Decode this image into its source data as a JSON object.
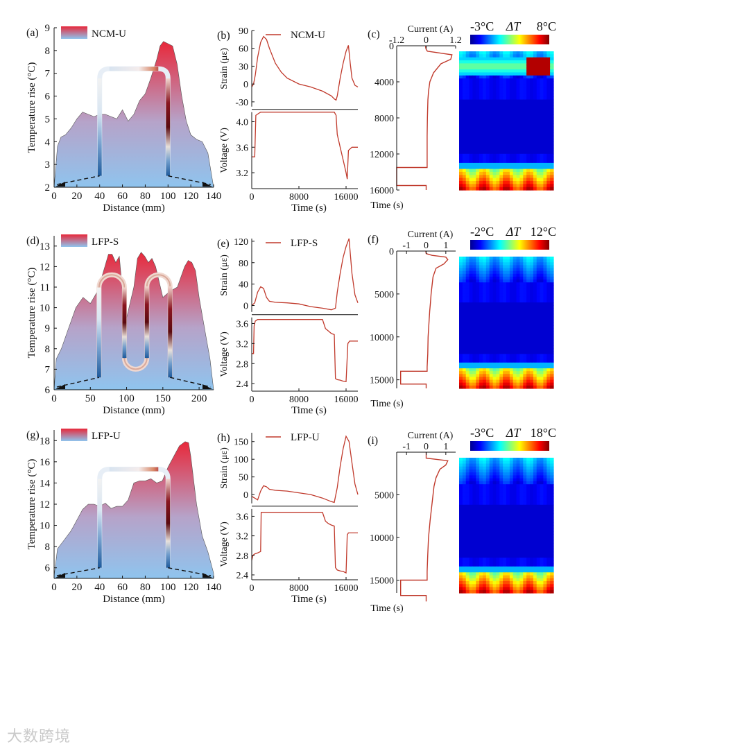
{
  "watermark": "大数跨境",
  "colors": {
    "curve": "#c0392b",
    "profile_top": "#e8283a",
    "profile_bottom": "#8fc4ee",
    "fiber_hot": "#6e0a14",
    "fiber_cold": "#1e5a9c"
  },
  "legend_swatch_name": "temperature-gradient-swatch",
  "chart_data": [
    {
      "id": "a",
      "type": "area",
      "panel_label": "(a)",
      "legend": "NCM-U",
      "xlabel": "Distance (mm)",
      "ylabel": "Temperature rise (°C)",
      "xlim": [
        0,
        140
      ],
      "ylim": [
        2,
        9
      ],
      "xticks": [
        "0",
        "20",
        "40",
        "60",
        "80",
        "100",
        "120",
        "140"
      ],
      "yticks": [
        "2",
        "3",
        "4",
        "5",
        "6",
        "7",
        "8",
        "9"
      ],
      "x": [
        0,
        3,
        6,
        10,
        15,
        20,
        25,
        30,
        35,
        40,
        45,
        50,
        55,
        60,
        65,
        70,
        75,
        80,
        85,
        90,
        93,
        96,
        100,
        104,
        108,
        112,
        116,
        120,
        125,
        130,
        135,
        140
      ],
      "y": [
        2.0,
        3.8,
        4.2,
        4.3,
        4.6,
        5.0,
        5.3,
        5.2,
        5.1,
        5.2,
        5.2,
        5.1,
        5.0,
        5.4,
        4.9,
        5.2,
        5.8,
        6.1,
        6.8,
        7.6,
        8.2,
        8.4,
        8.3,
        8.2,
        7.4,
        6.0,
        4.9,
        4.3,
        4.1,
        4.0,
        3.5,
        2.0
      ],
      "fiber": {
        "shape": "U",
        "x": [
          40,
          100
        ],
        "top": 7.2,
        "bottom": 2.5
      }
    },
    {
      "id": "b",
      "type": "line",
      "panel_label": "(b)",
      "legend": "NCM-U",
      "xlabel": "Time (s)",
      "xlim": [
        0,
        18000
      ],
      "xticks": [
        "0",
        "8000",
        "16000"
      ],
      "top": {
        "ylabel": "Strain (με)",
        "ylim": [
          -38,
          90
        ],
        "yticks": [
          "-30",
          "0",
          "30",
          "60",
          "90"
        ],
        "x": [
          0,
          300,
          600,
          1000,
          1500,
          2000,
          2500,
          3000,
          4000,
          5000,
          6000,
          8000,
          10000,
          12000,
          13500,
          14000,
          14300,
          14500,
          15000,
          15500,
          16000,
          16400,
          16700,
          17000,
          17500,
          18000
        ],
        "y": [
          -5,
          0,
          15,
          45,
          70,
          80,
          75,
          60,
          35,
          20,
          10,
          0,
          -5,
          -12,
          -20,
          -25,
          -27,
          -20,
          10,
          35,
          55,
          65,
          35,
          10,
          -2,
          -5
        ]
      },
      "bottom": {
        "ylabel": "Voltage (V)",
        "ylim": [
          2.95,
          4.15
        ],
        "yticks": [
          "3.2",
          "3.6",
          "4.0"
        ],
        "x": [
          0,
          500,
          700,
          1000,
          1500,
          14000,
          14300,
          14500,
          15000,
          15500,
          16000,
          16200,
          16400,
          17000,
          18000
        ],
        "y": [
          3.45,
          3.45,
          4.1,
          4.12,
          4.15,
          4.15,
          4.1,
          3.8,
          3.6,
          3.4,
          3.2,
          3.1,
          3.55,
          3.6,
          3.6
        ]
      }
    },
    {
      "id": "c",
      "type": "heatmap",
      "panel_label": "(c)",
      "current_label": "Current (A)",
      "current_ticks": [
        "-1.2",
        "0",
        "1.2"
      ],
      "current_lim": [
        -1.2,
        1.2
      ],
      "time_label": "Time (s)",
      "time_lim": [
        0,
        16000
      ],
      "time_ticks": [
        "0",
        "4000",
        "8000",
        "12000",
        "16000"
      ],
      "colorbar": {
        "min_label": "-3°C",
        "delta_label": "ΔT",
        "max_label": "8°C"
      },
      "current_t": [
        0,
        200,
        400,
        600,
        1000,
        1500,
        2000,
        3000,
        4000,
        5000,
        6000,
        8000,
        10000,
        12000,
        13500,
        13500,
        15500,
        15500,
        16000
      ],
      "current_i": [
        -0.02,
        -0.02,
        0.0,
        0.05,
        1.05,
        1.0,
        0.6,
        0.3,
        0.15,
        0.1,
        0.07,
        0.05,
        0.04,
        0.04,
        0.04,
        -1.2,
        -1.2,
        0.0,
        0.0
      ],
      "hotspot": {
        "t": 1800,
        "pos": 0.85
      }
    },
    {
      "id": "d",
      "type": "area",
      "panel_label": "(d)",
      "legend": "LFP-S",
      "xlabel": "Distance (mm)",
      "ylabel": "Temperature rise (°C)",
      "xlim": [
        0,
        220
      ],
      "ylim": [
        6,
        13.5
      ],
      "xticks": [
        "0",
        "50",
        "100",
        "150",
        "200"
      ],
      "yticks": [
        "6",
        "7",
        "8",
        "9",
        "10",
        "11",
        "12",
        "13"
      ],
      "x": [
        0,
        3,
        10,
        20,
        30,
        40,
        50,
        60,
        70,
        75,
        80,
        85,
        90,
        95,
        100,
        110,
        115,
        120,
        125,
        130,
        135,
        140,
        150,
        160,
        170,
        180,
        185,
        190,
        195,
        200,
        210,
        215,
        220
      ],
      "y": [
        6.0,
        7.5,
        8.0,
        9.0,
        10.0,
        10.5,
        10.2,
        10.8,
        12.0,
        12.6,
        12.6,
        12.2,
        12.5,
        10.5,
        9.5,
        11.0,
        12.4,
        12.7,
        12.5,
        12.2,
        12.4,
        12.0,
        10.5,
        10.8,
        11.0,
        12.0,
        12.3,
        12.2,
        11.8,
        10.5,
        8.5,
        7.5,
        6.0
      ],
      "fiber": {
        "shape": "S",
        "x": [
          62,
          97,
          128,
          160
        ],
        "top": 11.6,
        "bottom": 7.0,
        "base": 6.6
      }
    },
    {
      "id": "e",
      "type": "line",
      "panel_label": "(e)",
      "legend": "LFP-S",
      "xlabel": "Time (s)",
      "xlim": [
        0,
        18000
      ],
      "xticks": [
        "0",
        "8000",
        "16000"
      ],
      "top": {
        "ylabel": "Strain (με)",
        "ylim": [
          -12,
          125
        ],
        "yticks": [
          "0",
          "40",
          "80",
          "120"
        ],
        "x": [
          0,
          500,
          1000,
          1500,
          2000,
          2500,
          3000,
          4000,
          6000,
          8000,
          10000,
          12000,
          13500,
          14200,
          14500,
          15000,
          15500,
          16000,
          16500,
          17000,
          17500,
          18000
        ],
        "y": [
          0,
          5,
          25,
          35,
          32,
          15,
          8,
          6,
          5,
          3,
          -2,
          -5,
          -8,
          -5,
          25,
          60,
          90,
          110,
          125,
          60,
          20,
          5
        ]
      },
      "bottom": {
        "ylabel": "Voltage (V)",
        "ylim": [
          2.25,
          3.72
        ],
        "yticks": [
          "2.4",
          "2.8",
          "3.2",
          "3.6"
        ],
        "x": [
          0,
          300,
          400,
          600,
          1000,
          12000,
          12500,
          13000,
          13500,
          14000,
          14200,
          14500,
          15000,
          15500,
          16000,
          16300,
          16600,
          18000
        ],
        "y": [
          3.0,
          3.0,
          3.55,
          3.65,
          3.68,
          3.68,
          3.5,
          3.45,
          3.4,
          3.38,
          2.5,
          2.48,
          2.47,
          2.45,
          2.44,
          3.2,
          3.25,
          3.25
        ]
      }
    },
    {
      "id": "f",
      "type": "heatmap",
      "panel_label": "(f)",
      "current_label": "Current (A)",
      "current_ticks": [
        "-1",
        "0",
        "1"
      ],
      "current_lim": [
        -1.5,
        1.5
      ],
      "time_label": "Time (s)",
      "time_lim": [
        0,
        16000
      ],
      "time_ticks": [
        "0",
        "5000",
        "10000",
        "15000"
      ],
      "colorbar": {
        "min_label": "-2°C",
        "delta_label": "ΔT",
        "max_label": "12°C"
      },
      "current_t": [
        0,
        300,
        500,
        700,
        1000,
        1500,
        2000,
        3000,
        4000,
        5000,
        6000,
        7000,
        8000,
        10000,
        12000,
        13500,
        14000,
        14000,
        15500,
        15500,
        16000
      ],
      "current_i": [
        -0.02,
        0.0,
        0.3,
        1.0,
        1.1,
        0.9,
        0.5,
        0.35,
        0.3,
        0.25,
        0.22,
        0.18,
        0.15,
        0.1,
        0.08,
        0.05,
        0.05,
        -1.3,
        -1.3,
        0.0,
        0.0
      ],
      "hotspot": null
    },
    {
      "id": "g",
      "type": "area",
      "panel_label": "(g)",
      "legend": "LFP-U",
      "xlabel": "Distance (mm)",
      "ylabel": "Temperature rise (°C)",
      "xlim": [
        0,
        140
      ],
      "ylim": [
        5,
        19
      ],
      "xticks": [
        "0",
        "20",
        "40",
        "60",
        "80",
        "100",
        "120",
        "140"
      ],
      "yticks": [
        "6",
        "8",
        "10",
        "12",
        "14",
        "16",
        "18"
      ],
      "x": [
        0,
        3,
        8,
        15,
        20,
        25,
        30,
        35,
        40,
        45,
        50,
        55,
        60,
        65,
        70,
        75,
        80,
        85,
        90,
        95,
        100,
        105,
        110,
        115,
        118,
        120,
        125,
        130,
        135,
        140
      ],
      "y": [
        5.2,
        7.8,
        8.5,
        9.5,
        10.5,
        11.5,
        12.0,
        12.0,
        11.8,
        12.1,
        11.6,
        11.8,
        11.8,
        12.4,
        14.0,
        14.2,
        14.2,
        14.4,
        14.0,
        14.2,
        15.5,
        16.5,
        17.5,
        17.9,
        17.8,
        16.5,
        12.0,
        9.0,
        7.5,
        5.5
      ],
      "fiber": {
        "shape": "U",
        "x": [
          40,
          100
        ],
        "top": 15.3,
        "bottom": 6.0
      }
    },
    {
      "id": "h",
      "type": "line",
      "panel_label": "(h)",
      "legend": "LFP-U",
      "xlabel": "Time (s)",
      "xlim": [
        0,
        18000
      ],
      "xticks": [
        "0",
        "8000",
        "16000"
      ],
      "top": {
        "ylabel": "Strain (με)",
        "ylim": [
          -25,
          175
        ],
        "yticks": [
          "0",
          "50",
          "100",
          "150"
        ],
        "x": [
          0,
          500,
          1000,
          1500,
          2000,
          2500,
          3000,
          4000,
          6000,
          8000,
          10000,
          12000,
          13500,
          14000,
          14500,
          15000,
          15500,
          16000,
          16500,
          17000,
          17500,
          18000
        ],
        "y": [
          -5,
          -10,
          -15,
          10,
          25,
          22,
          15,
          12,
          10,
          5,
          0,
          -10,
          -20,
          -22,
          20,
          80,
          130,
          165,
          150,
          90,
          30,
          0
        ]
      },
      "bottom": {
        "ylabel": "Voltage (V)",
        "ylim": [
          2.3,
          3.75
        ],
        "yticks": [
          "2.4",
          "2.8",
          "3.2",
          "3.6"
        ],
        "x": [
          0,
          200,
          500,
          1000,
          1500,
          1600,
          2000,
          12000,
          12500,
          13000,
          13500,
          14000,
          14200,
          14500,
          15000,
          15500,
          16000,
          16200,
          16400,
          18000
        ],
        "y": [
          2.7,
          2.8,
          2.83,
          2.85,
          2.88,
          3.68,
          3.68,
          3.68,
          3.5,
          3.45,
          3.42,
          3.4,
          2.55,
          2.5,
          2.48,
          2.47,
          2.44,
          3.22,
          3.26,
          3.26
        ]
      }
    },
    {
      "id": "i",
      "type": "heatmap",
      "panel_label": "(i)",
      "current_label": "Current (A)",
      "current_ticks": [
        "-1",
        "0",
        "1"
      ],
      "current_lim": [
        -1.5,
        1.5
      ],
      "time_label": "Time (s)",
      "time_lim": [
        0,
        16500
      ],
      "time_ticks": [
        "5000",
        "10000",
        "15000"
      ],
      "colorbar": {
        "min_label": "-3°C",
        "delta_label": "ΔT",
        "max_label": "18°C"
      },
      "current_t": [
        0,
        300,
        500,
        700,
        1000,
        1500,
        2000,
        3000,
        4000,
        5000,
        6000,
        7000,
        8000,
        10000,
        12000,
        14000,
        15000,
        15000,
        16800,
        16800,
        17500
      ],
      "current_i": [
        0.0,
        0.0,
        0.0,
        0.0,
        1.1,
        1.0,
        0.7,
        0.5,
        0.4,
        0.35,
        0.3,
        0.25,
        0.2,
        0.12,
        0.08,
        0.05,
        0.05,
        -1.3,
        -1.3,
        0.0,
        0.0
      ],
      "hotspot": null
    }
  ]
}
